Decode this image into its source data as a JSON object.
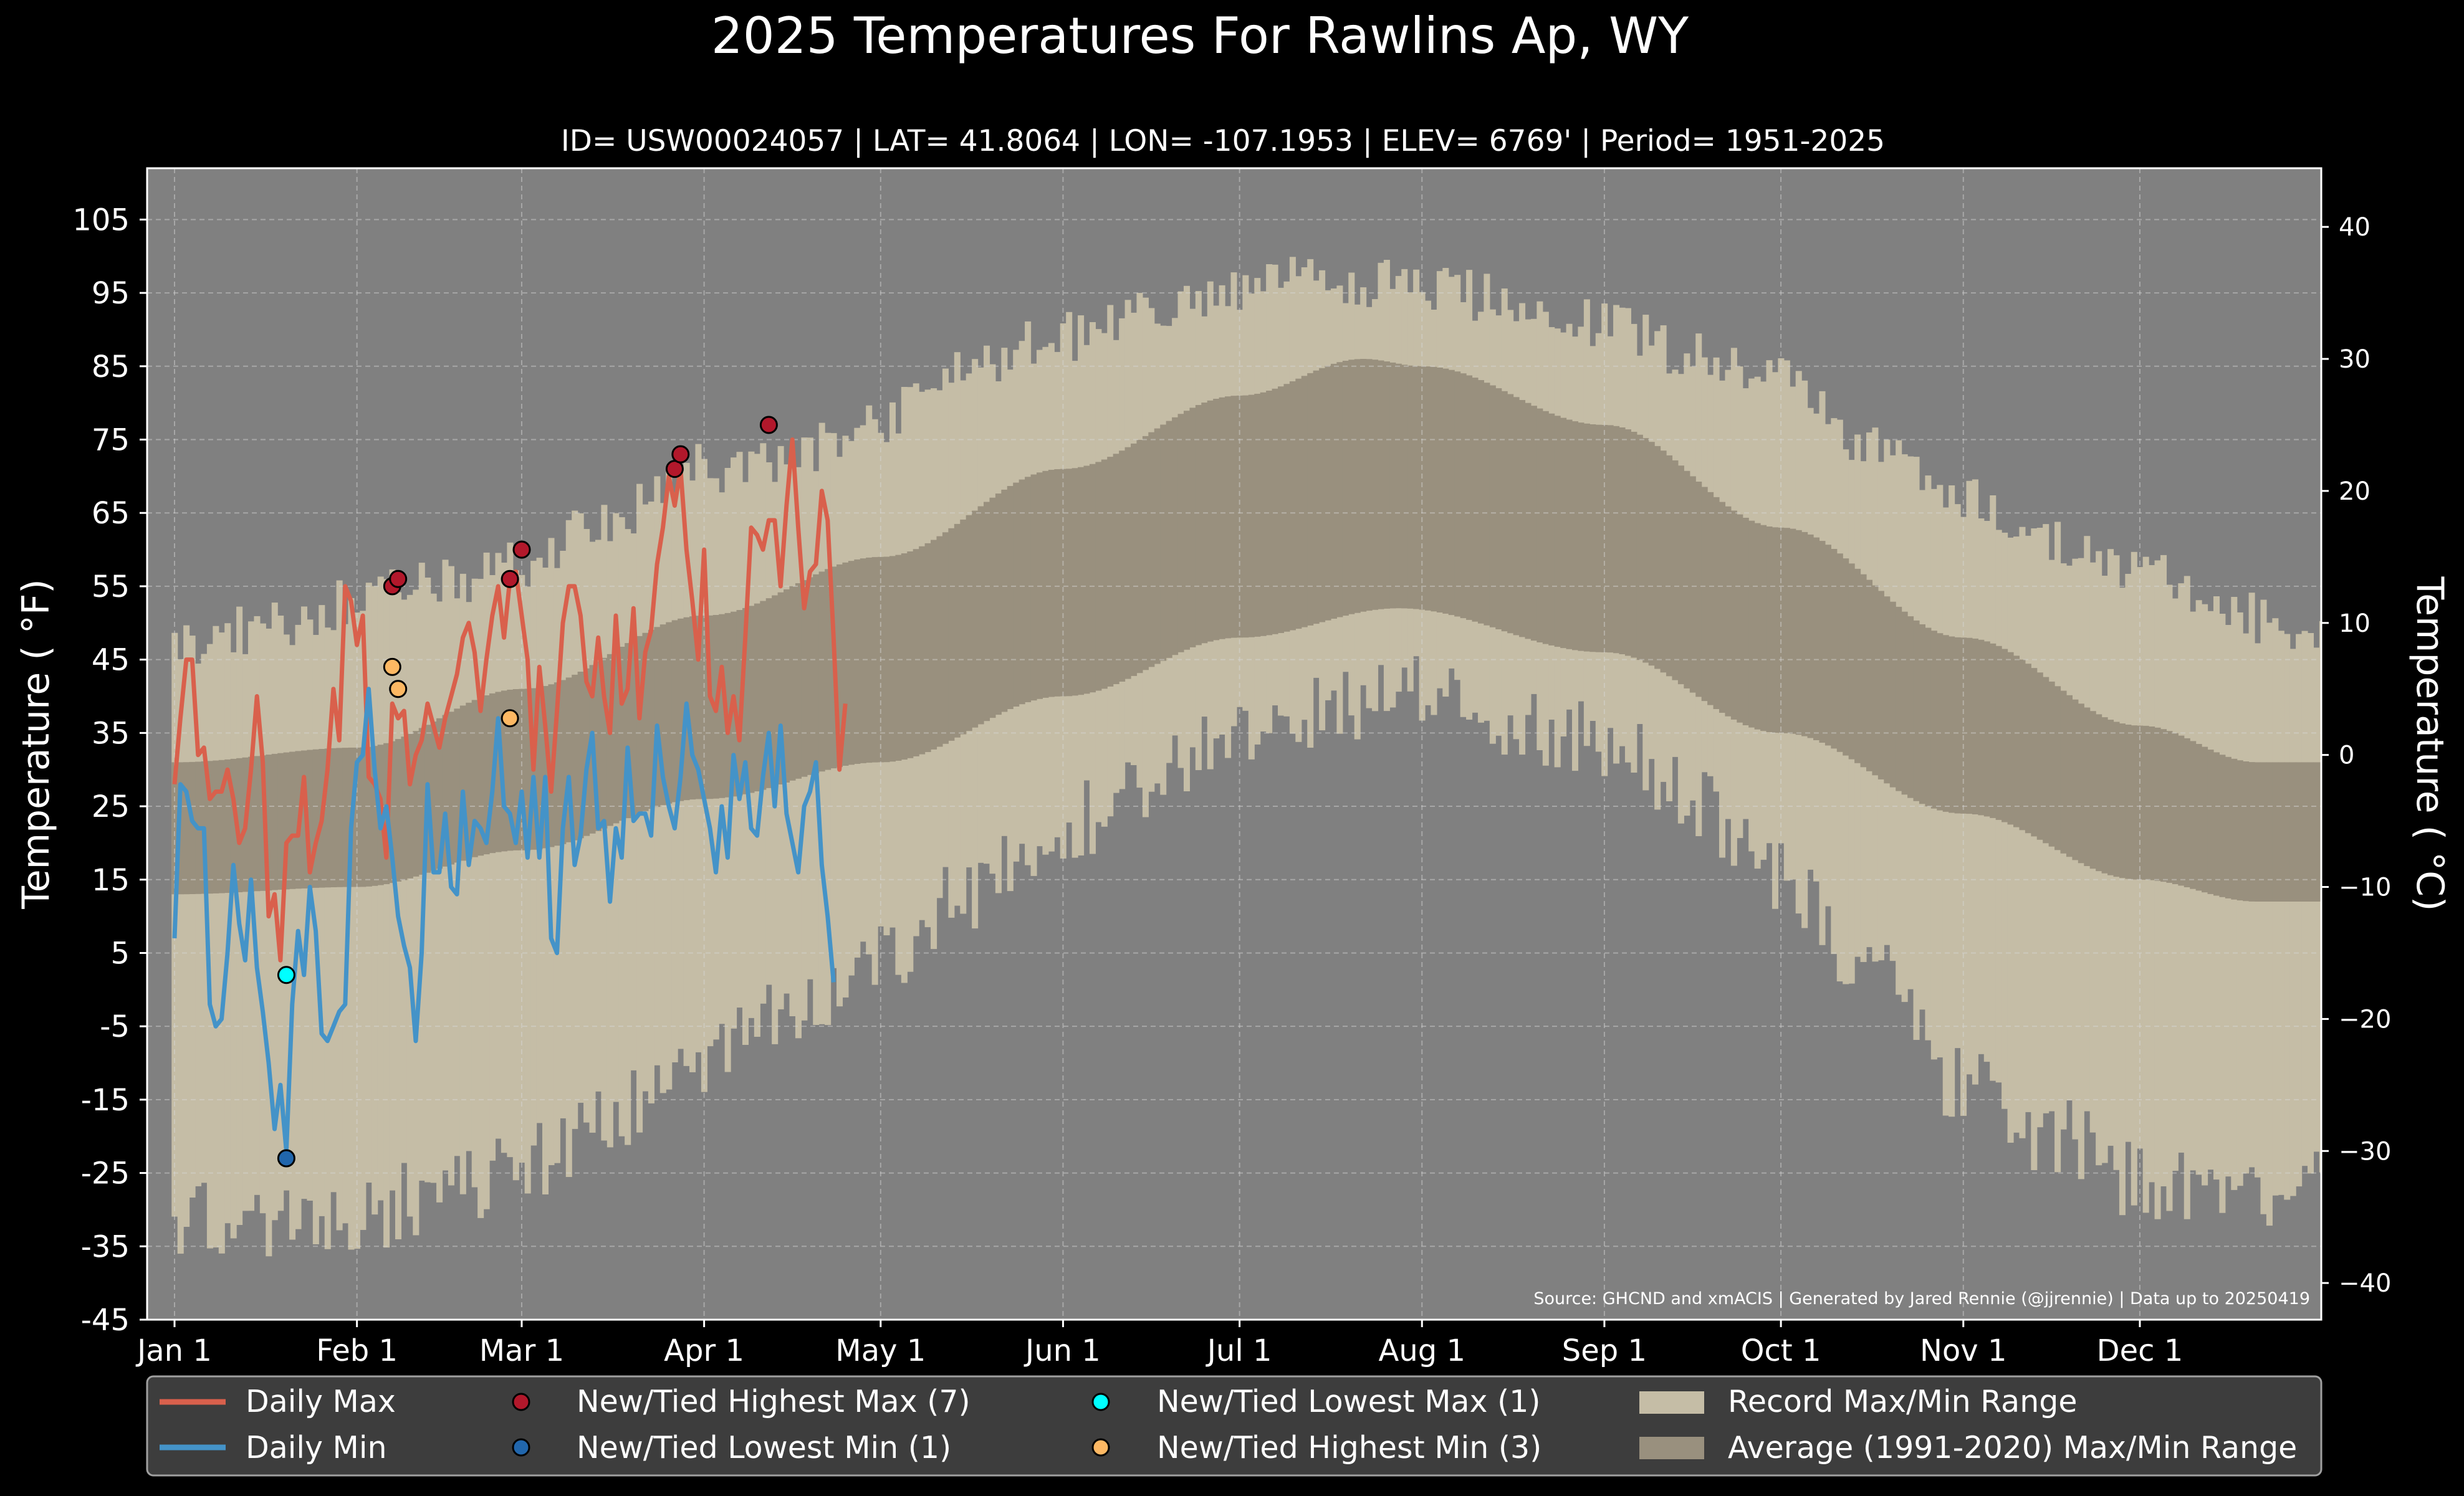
{
  "chart_data": {
    "type": "line",
    "title": "2025 Temperatures For Rawlins Ap, WY",
    "subtitle": "ID= USW00024057 | LAT= 41.8064 | LON= -107.1953 | ELEV= 6769' | Period= 1951-2025",
    "ylabel": "Temperature ( °F)",
    "ylabel_right": "Temperature ( °C)",
    "source": "Source: GHCND and xmACIS | Generated by Jared Rennie (@jjrennie) | Data up to 20250419",
    "ylim": [
      -45,
      112
    ],
    "yticks": [
      -45,
      -35,
      -25,
      -15,
      -5,
      5,
      15,
      25,
      35,
      45,
      55,
      65,
      75,
      85,
      95,
      105
    ],
    "yticks_right": [
      -40,
      -30,
      -20,
      -10,
      0,
      10,
      20,
      30,
      40
    ],
    "xticks": [
      {
        "label": "Jan 1",
        "day": 1
      },
      {
        "label": "Feb 1",
        "day": 32
      },
      {
        "label": "Mar 1",
        "day": 60
      },
      {
        "label": "Apr 1",
        "day": 91
      },
      {
        "label": "May 1",
        "day": 121
      },
      {
        "label": "Jun 1",
        "day": 152
      },
      {
        "label": "Jul 1",
        "day": 182
      },
      {
        "label": "Aug 1",
        "day": 213
      },
      {
        "label": "Sep 1",
        "day": 244
      },
      {
        "label": "Oct 1",
        "day": 274
      },
      {
        "label": "Nov 1",
        "day": 305
      },
      {
        "label": "Dec 1",
        "day": 335
      }
    ],
    "grid": true,
    "legend_position": "bottom",
    "colors": {
      "background": "#000000",
      "plot_background": "#808080",
      "record_range": "#c5bda6",
      "average_range": "#99907e",
      "daily_max": "#d9604c",
      "daily_min": "#4493c8",
      "highest_max": "#b2182b",
      "lowest_min": "#2166ac",
      "lowest_max": "#00ffff",
      "highest_min": "#fdb863",
      "legend_background": "#3d3d3d"
    },
    "legend": {
      "daily_max": "Daily Max",
      "daily_min": "Daily Min",
      "highest_max": "New/Tied Highest Max (7)",
      "lowest_min": "New/Tied Lowest Min (1)",
      "lowest_max": "New/Tied Lowest Max (1)",
      "highest_min": "New/Tied Highest Min (3)",
      "record_range": "Record Max/Min Range",
      "average_range": "Average (1991-2020) Max/Min Range"
    },
    "record_max_anchors": [
      [
        1,
        47
      ],
      [
        15,
        49
      ],
      [
        32,
        53
      ],
      [
        45,
        55
      ],
      [
        60,
        58
      ],
      [
        75,
        64
      ],
      [
        91,
        71
      ],
      [
        105,
        72
      ],
      [
        121,
        78
      ],
      [
        135,
        85
      ],
      [
        152,
        89
      ],
      [
        166,
        92
      ],
      [
        182,
        95
      ],
      [
        196,
        97
      ],
      [
        213,
        96
      ],
      [
        227,
        94
      ],
      [
        244,
        91
      ],
      [
        258,
        87
      ],
      [
        274,
        83
      ],
      [
        288,
        75
      ],
      [
        305,
        67
      ],
      [
        320,
        61
      ],
      [
        335,
        57
      ],
      [
        350,
        51
      ],
      [
        366,
        49
      ]
    ],
    "record_min_anchors": [
      [
        1,
        -31
      ],
      [
        15,
        -33
      ],
      [
        32,
        -31
      ],
      [
        45,
        -28
      ],
      [
        60,
        -24
      ],
      [
        75,
        -17
      ],
      [
        91,
        -10
      ],
      [
        105,
        -4
      ],
      [
        121,
        5
      ],
      [
        135,
        12
      ],
      [
        152,
        22
      ],
      [
        166,
        29
      ],
      [
        182,
        34
      ],
      [
        196,
        38
      ],
      [
        213,
        40
      ],
      [
        227,
        37
      ],
      [
        244,
        34
      ],
      [
        258,
        26
      ],
      [
        274,
        16
      ],
      [
        288,
        3
      ],
      [
        305,
        -13
      ],
      [
        320,
        -20
      ],
      [
        335,
        -26
      ],
      [
        350,
        -29
      ],
      [
        366,
        -27
      ]
    ],
    "average_max_anchors": [
      [
        1,
        31
      ],
      [
        32,
        33
      ],
      [
        60,
        41
      ],
      [
        91,
        51
      ],
      [
        121,
        59
      ],
      [
        152,
        71
      ],
      [
        182,
        81
      ],
      [
        203,
        86
      ],
      [
        213,
        85
      ],
      [
        244,
        77
      ],
      [
        274,
        63
      ],
      [
        305,
        48
      ],
      [
        335,
        36
      ],
      [
        355,
        31
      ],
      [
        366,
        31
      ]
    ],
    "average_min_anchors": [
      [
        1,
        13
      ],
      [
        32,
        14
      ],
      [
        60,
        19
      ],
      [
        91,
        26
      ],
      [
        121,
        31
      ],
      [
        152,
        40
      ],
      [
        182,
        48
      ],
      [
        209,
        52
      ],
      [
        244,
        46
      ],
      [
        274,
        35
      ],
      [
        305,
        24
      ],
      [
        335,
        15
      ],
      [
        355,
        12
      ],
      [
        366,
        12
      ]
    ],
    "daily_max": [
      28,
      37,
      45,
      45,
      32,
      33,
      26,
      27,
      27,
      30,
      26,
      20,
      22,
      30,
      40,
      31,
      10,
      13,
      4,
      20,
      21,
      21,
      29,
      16,
      20,
      23,
      30,
      41,
      34,
      55,
      53,
      47,
      51,
      29,
      28,
      26,
      18,
      39,
      37,
      38,
      28,
      32,
      34,
      39,
      36,
      33,
      37,
      40,
      43,
      48,
      50,
      46,
      38,
      45,
      51,
      55,
      48,
      56,
      57,
      51,
      45,
      30,
      44,
      36,
      27,
      38,
      50,
      55,
      55,
      51,
      42,
      40,
      48,
      40,
      35,
      51,
      39,
      41,
      52,
      37,
      46,
      49,
      58,
      63,
      70,
      66,
      71,
      60,
      53,
      45,
      60,
      40,
      38,
      44,
      35,
      40,
      34,
      48,
      63,
      62,
      60,
      64,
      64,
      55,
      66,
      75,
      63,
      52,
      57,
      58,
      68,
      64,
      48,
      30,
      39
    ],
    "daily_min": [
      7,
      28,
      27,
      23,
      22,
      22,
      -2,
      -5,
      -4,
      5,
      17,
      9,
      4,
      15,
      3,
      -3,
      -10,
      -19,
      -13,
      -22,
      -2,
      8,
      2,
      14,
      8,
      -6,
      -7,
      -5,
      -3,
      -2,
      22,
      31,
      32,
      41,
      30,
      22,
      25,
      18,
      10,
      6,
      3,
      -7,
      5,
      28,
      16,
      16,
      24,
      14,
      13,
      27,
      17,
      23,
      22,
      20,
      27,
      37,
      25,
      24,
      20,
      27,
      18,
      29,
      18,
      29,
      7,
      5,
      22,
      29,
      17,
      21,
      30,
      35,
      22,
      23,
      12,
      22,
      18,
      33,
      23,
      24,
      24,
      21,
      36,
      29,
      25,
      22,
      29,
      39,
      32,
      30,
      26,
      22,
      16,
      25,
      18,
      32,
      26,
      31,
      22,
      21,
      29,
      35,
      25,
      36,
      24,
      20,
      16,
      25,
      27,
      31,
      17,
      10,
      1
    ],
    "record_marks": [
      {
        "type": "highest_max",
        "day": 38,
        "value": 55
      },
      {
        "type": "highest_max",
        "day": 39,
        "value": 56
      },
      {
        "type": "highest_max",
        "day": 58,
        "value": 56
      },
      {
        "type": "highest_max",
        "day": 60,
        "value": 60
      },
      {
        "type": "highest_max",
        "day": 86,
        "value": 71
      },
      {
        "type": "highest_max",
        "day": 87,
        "value": 73
      },
      {
        "type": "highest_max",
        "day": 102,
        "value": 77
      },
      {
        "type": "lowest_min",
        "day": 20,
        "value": -23
      },
      {
        "type": "lowest_max",
        "day": 20,
        "value": 2
      },
      {
        "type": "highest_min",
        "day": 38,
        "value": 44
      },
      {
        "type": "highest_min",
        "day": 39,
        "value": 41
      },
      {
        "type": "highest_min",
        "day": 58,
        "value": 37
      }
    ]
  }
}
